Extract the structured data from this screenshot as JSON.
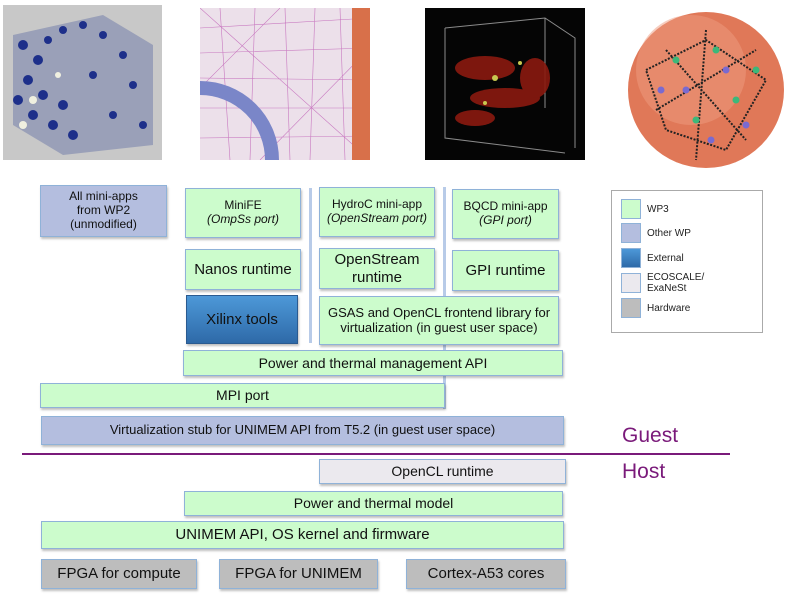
{
  "images": [
    {
      "name": "atomic-lattice-image"
    },
    {
      "name": "finite-element-mesh-image"
    },
    {
      "name": "hydrodynamics-volume-render-image"
    },
    {
      "name": "polymer-sphere-image"
    }
  ],
  "boxes": {
    "all_miniapps": [
      "All mini-apps",
      "from WP2",
      "(unmodified)"
    ],
    "minife": {
      "title": "MiniFE",
      "sub": "(OmpSs port)"
    },
    "hydroc": {
      "title": "HydroC mini-app",
      "sub": "(OpenStream port)"
    },
    "bqcd": {
      "title": "BQCD mini-app",
      "sub": "(GPI port)"
    },
    "nanos": "Nanos runtime",
    "openstream": [
      "OpenStream",
      "runtime"
    ],
    "gpi": "GPI runtime",
    "xilinx": "Xilinx tools",
    "gsas": [
      "GSAS and OpenCL frontend library for",
      "virtualization (in guest user space)"
    ],
    "power_api": "Power and thermal management API",
    "mpi": "MPI port",
    "virt_stub": "Virtualization stub for UNIMEM API from T5.2 (in guest user space)",
    "opencl": "OpenCL runtime",
    "power_model": "Power and thermal model",
    "unimem": "UNIMEM API, OS kernel and firmware",
    "fpga_compute": "FPGA for compute",
    "fpga_unimem": "FPGA for UNIMEM",
    "cortex": "Cortex-A53 cores"
  },
  "labels": {
    "guest": "Guest",
    "host": "Host"
  },
  "legend": [
    {
      "label": "WP3",
      "color": "#ccfccc"
    },
    {
      "label": "Other WP",
      "color": "#b4bedf"
    },
    {
      "label": "External",
      "color": "#3a7fc0"
    },
    {
      "label": "ECOSCALE/ ExaNeSt",
      "color": "#ebe9ee"
    },
    {
      "label": "Hardware",
      "color": "#bdbdbd"
    }
  ],
  "colors": {
    "divider": "#7a1a7a"
  }
}
